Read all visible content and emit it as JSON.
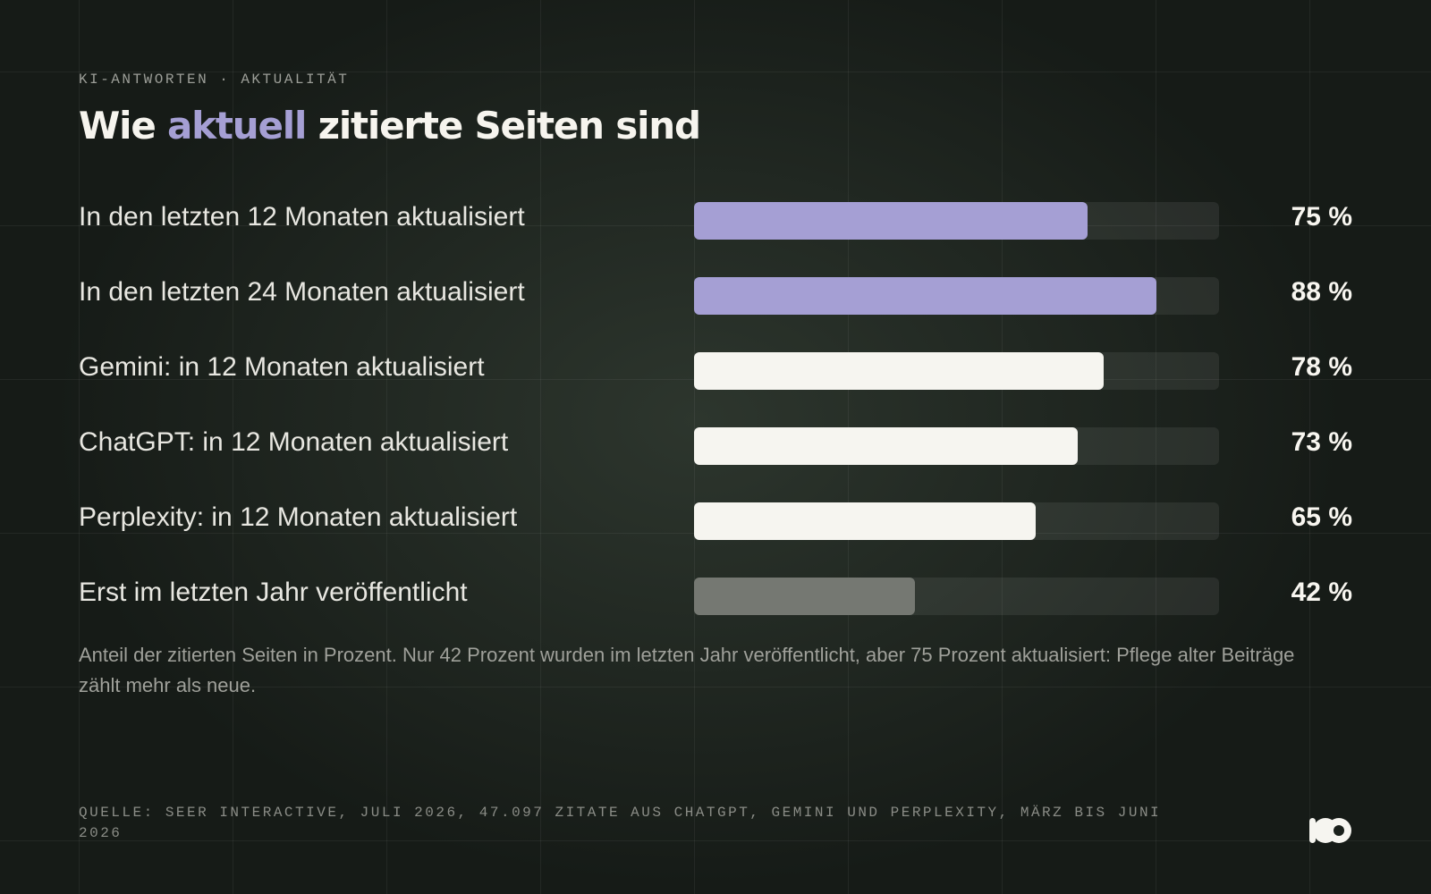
{
  "eyebrow": {
    "left": "KI-ANTWORTEN",
    "separator": "·",
    "right": "AKTUALITÄT"
  },
  "title": {
    "before": "Wie ",
    "accent": "aktuell",
    "after": " zitierte Seiten sind"
  },
  "colors": {
    "accent": "#a59fd4",
    "highlight_bar": "#a59fd4",
    "platform_bar": "#f6f5f0",
    "muted_bar": "#757872",
    "track": "rgba(255,255,255,0.075)",
    "background": "#161b17"
  },
  "chart_data": {
    "type": "bar",
    "orientation": "horizontal",
    "xlim": [
      0,
      100
    ],
    "categories": [
      "In den letzten 12 Monaten aktualisiert",
      "In den letzten 24 Monaten aktualisiert",
      "Gemini: in 12 Monaten aktualisiert",
      "ChatGPT: in 12 Monaten aktualisiert",
      "Perplexity: in 12 Monaten aktualisiert",
      "Erst im letzten Jahr veröffentlicht"
    ],
    "values": [
      75,
      88,
      78,
      73,
      65,
      42
    ],
    "value_labels": [
      "75 %",
      "88 %",
      "78 %",
      "73 %",
      "65 %",
      "42 %"
    ],
    "bar_colors": [
      "#a59fd4",
      "#a59fd4",
      "#f6f5f0",
      "#f6f5f0",
      "#f6f5f0",
      "#757872"
    ],
    "grid": false,
    "legend": "none"
  },
  "caption": "Anteil der zitierten Seiten in Prozent. Nur 42 Prozent wurden im letzten Jahr veröffentlicht, aber 75 Prozent aktualisiert: Pflege alter Beiträge zählt mehr als neue.",
  "source": "QUELLE: SEER INTERACTIVE, JULI 2026, 47.097 ZITATE AUS CHATGPT, GEMINI UND PERPLEXITY, MÄRZ BIS JUNI 2026",
  "logo": {
    "icon": "brand-logo-icon"
  }
}
